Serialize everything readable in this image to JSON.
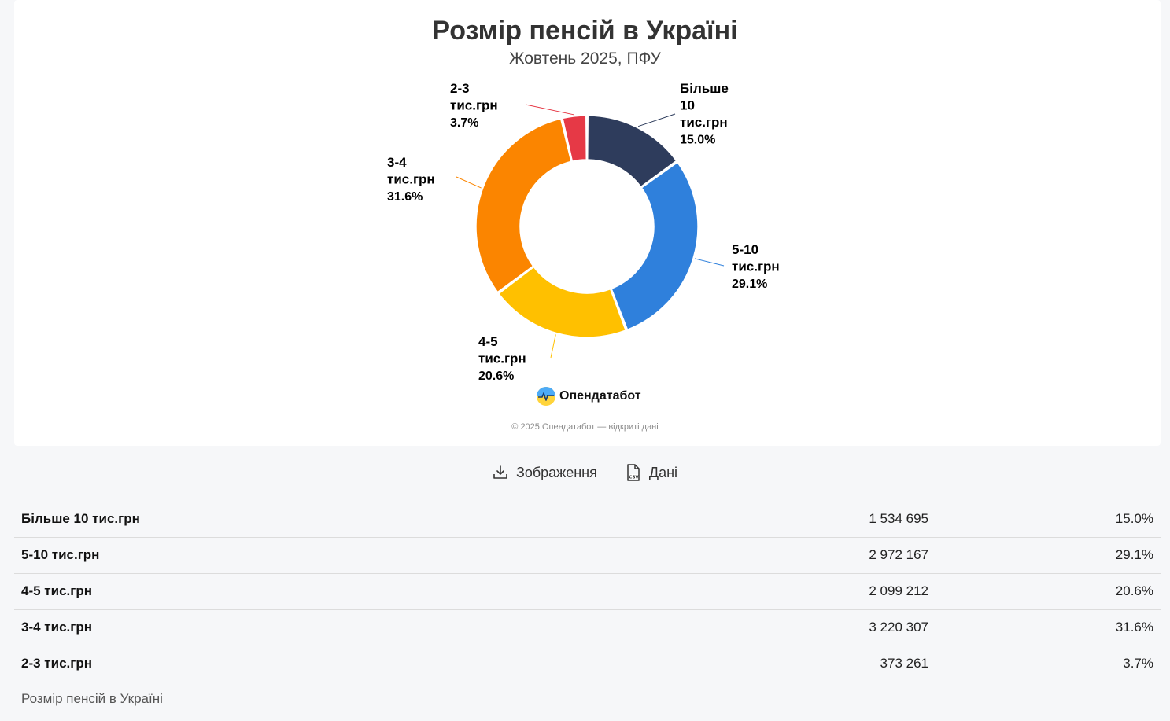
{
  "chart_data": {
    "type": "pie",
    "variant": "donut",
    "title": "Розмір пенсій в Україні",
    "subtitle": "Жовтень 2025, ПФУ",
    "slices": [
      {
        "label": "Більше 10 тис.грн",
        "label_lines": [
          "Більше",
          "10",
          "тис.грн"
        ],
        "value": 1534695,
        "percent": 15.0,
        "percent_label": "15.0%",
        "color": "#2e3c5c"
      },
      {
        "label": "5-10 тис.грн",
        "label_lines": [
          "5-10",
          "тис.грн"
        ],
        "value": 2972167,
        "percent": 29.1,
        "percent_label": "29.1%",
        "color": "#2f80dc"
      },
      {
        "label": "4-5 тис.грн",
        "label_lines": [
          "4-5",
          "тис.грн"
        ],
        "value": 2099212,
        "percent": 20.6,
        "percent_label": "20.6%",
        "color": "#ffc000"
      },
      {
        "label": "3-4 тис.грн",
        "label_lines": [
          "3-4",
          "тис.грн"
        ],
        "value": 3220307,
        "percent": 31.6,
        "percent_label": "31.6%",
        "color": "#fb8500"
      },
      {
        "label": "2-3 тис.грн",
        "label_lines": [
          "2-3",
          "тис.грн"
        ],
        "value": 373261,
        "percent": 3.7,
        "percent_label": "3.7%",
        "color": "#e63946"
      }
    ],
    "legend": "none"
  },
  "logo": {
    "text": "Опендатабот"
  },
  "credit": "© 2025 Опендатабот — відкриті дані",
  "actions": {
    "image_label": "Зображення",
    "data_label": "Дані"
  },
  "table": {
    "rows": [
      {
        "category": "Більше 10 тис.грн",
        "count": "1 534 695",
        "percent": "15.0%"
      },
      {
        "category": "5-10 тис.грн",
        "count": "2 972 167",
        "percent": "29.1%"
      },
      {
        "category": "4-5 тис.грн",
        "count": "2 099 212",
        "percent": "20.6%"
      },
      {
        "category": "3-4 тис.грн",
        "count": "3 220 307",
        "percent": "31.6%"
      },
      {
        "category": "2-3 тис.грн",
        "count": "373 261",
        "percent": "3.7%"
      }
    ]
  },
  "caption": "Розмір пенсій в Україні"
}
